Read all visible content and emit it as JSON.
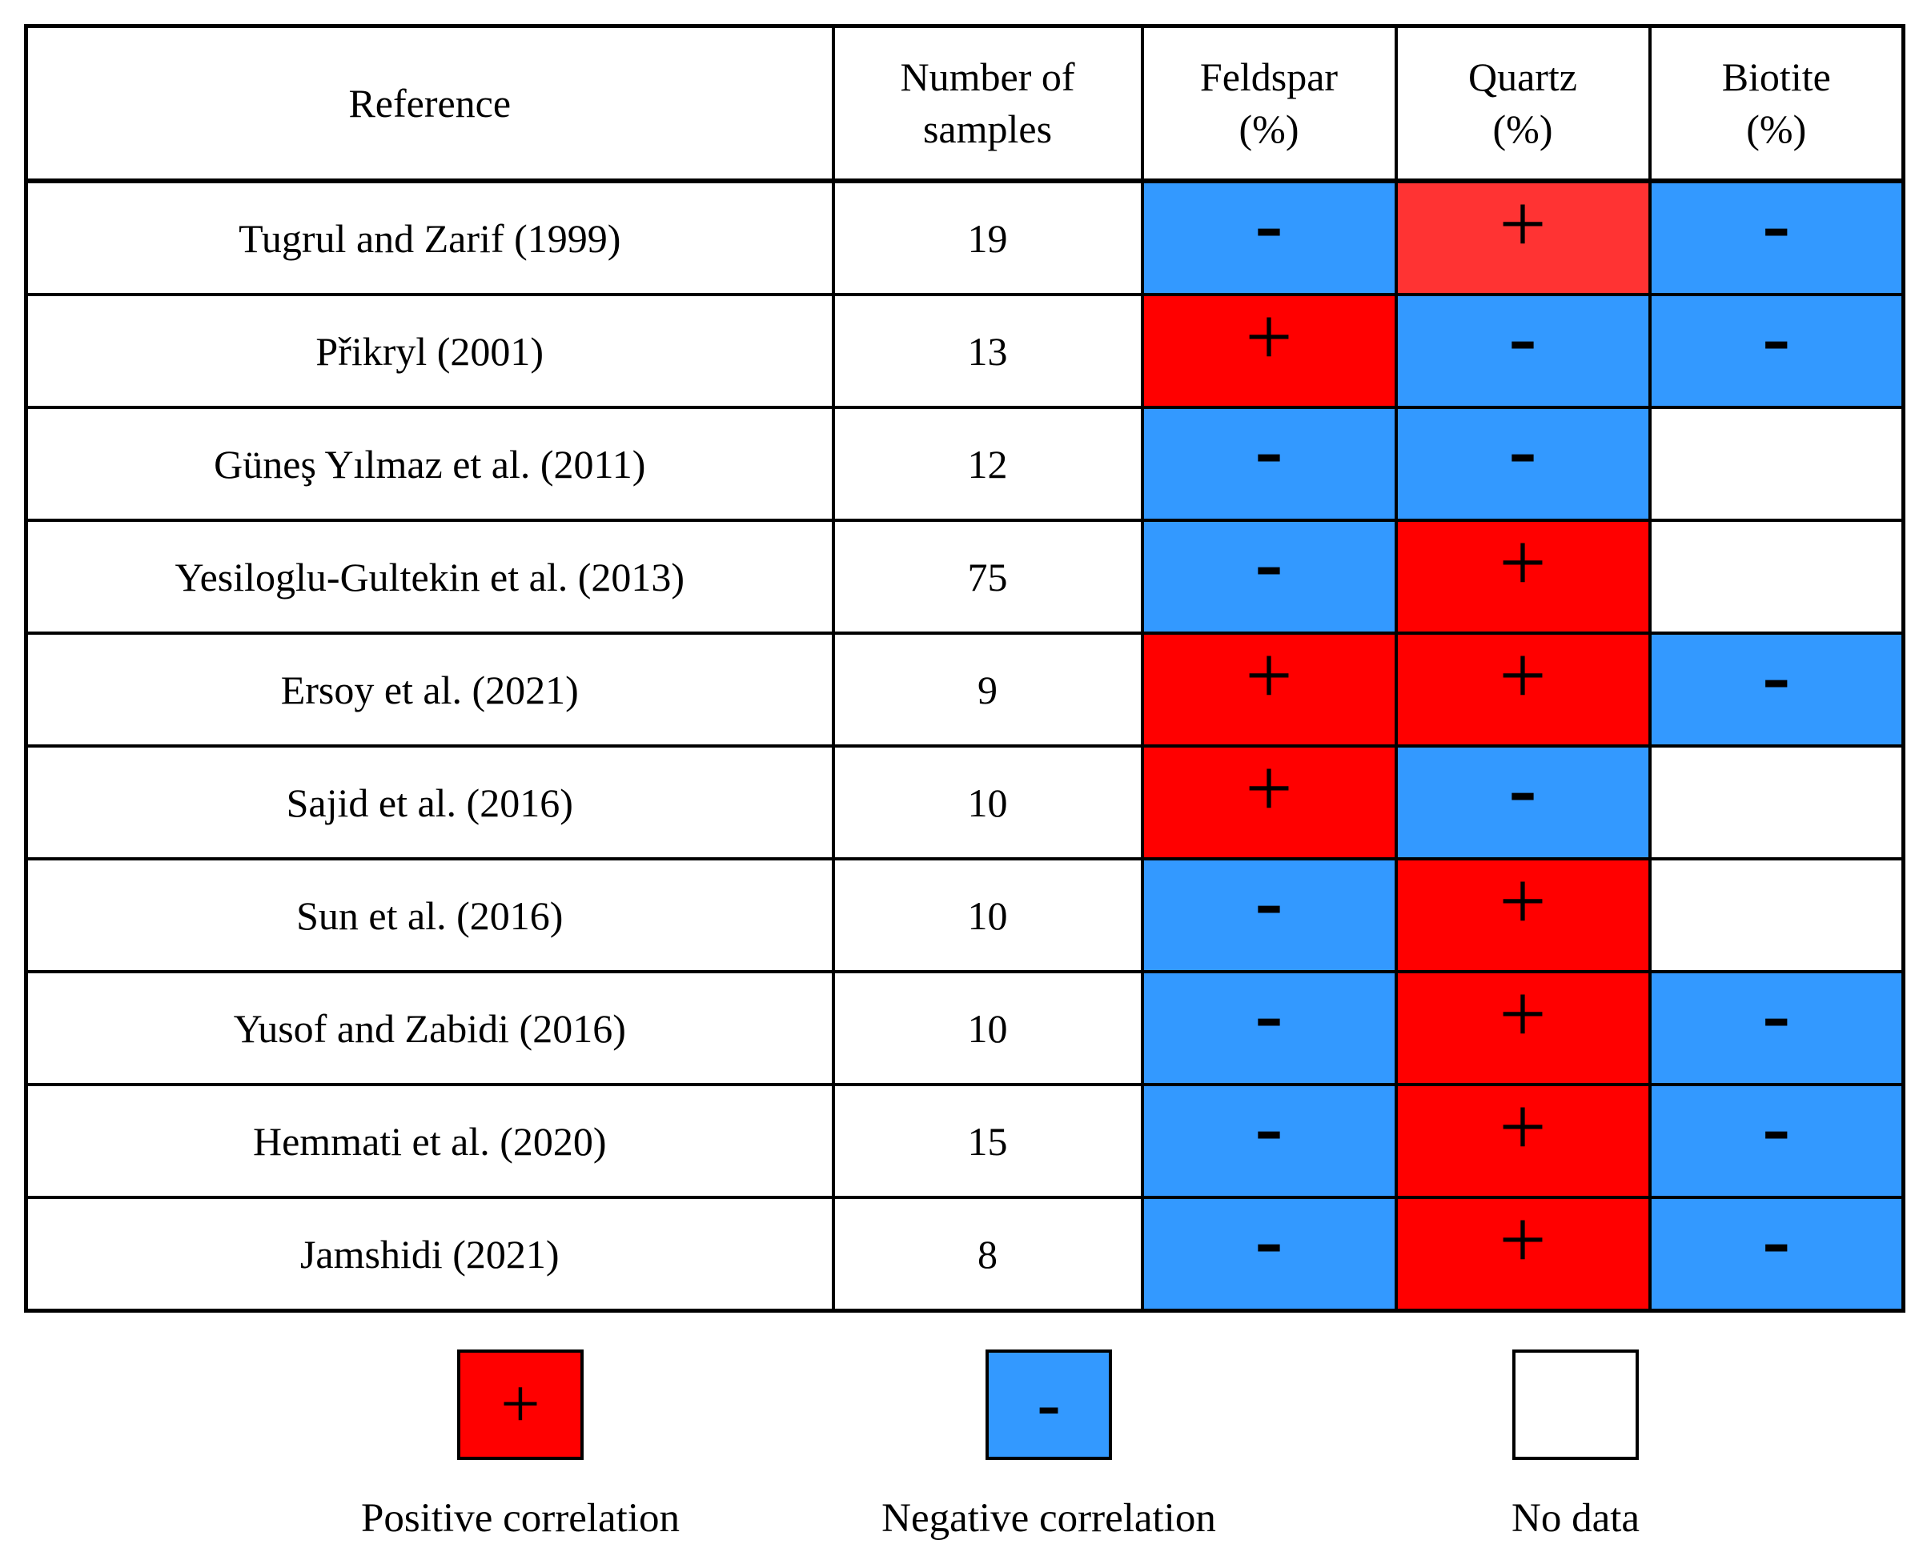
{
  "colors": {
    "positive": "#FF0000",
    "positive_light": "#FF3333",
    "negative": "#3399FF",
    "no_data": "#FFFFFF",
    "border": "#000000"
  },
  "table": {
    "columns": [
      {
        "line1": "Reference",
        "line2": ""
      },
      {
        "line1": "Number of",
        "line2": "samples"
      },
      {
        "line1": "Feldspar",
        "line2": "(%)"
      },
      {
        "line1": "Quartz",
        "line2": "(%)"
      },
      {
        "line1": "Biotite",
        "line2": "(%)"
      }
    ],
    "rows": [
      {
        "reference": "Tugrul and Zarif (1999)",
        "samples": "19",
        "cells": [
          {
            "sign": "-",
            "color": "#3399FF"
          },
          {
            "sign": "+",
            "color": "#FF3333"
          },
          {
            "sign": "-",
            "color": "#3399FF"
          }
        ]
      },
      {
        "reference": "Přikryl (2001)",
        "samples": "13",
        "cells": [
          {
            "sign": "+",
            "color": "#FF0000"
          },
          {
            "sign": "-",
            "color": "#3399FF"
          },
          {
            "sign": "-",
            "color": "#3399FF"
          }
        ]
      },
      {
        "reference": "Güneş Yılmaz et al. (2011)",
        "samples": "12",
        "cells": [
          {
            "sign": "-",
            "color": "#3399FF"
          },
          {
            "sign": "-",
            "color": "#3399FF"
          },
          {
            "sign": "",
            "color": "#FFFFFF"
          }
        ]
      },
      {
        "reference": "Yesiloglu-Gultekin et al. (2013)",
        "samples": "75",
        "cells": [
          {
            "sign": "-",
            "color": "#3399FF"
          },
          {
            "sign": "+",
            "color": "#FF0000"
          },
          {
            "sign": "",
            "color": "#FFFFFF"
          }
        ]
      },
      {
        "reference": "Ersoy et al. (2021)",
        "samples": "9",
        "cells": [
          {
            "sign": "+",
            "color": "#FF0000"
          },
          {
            "sign": "+",
            "color": "#FF0000"
          },
          {
            "sign": "-",
            "color": "#3399FF"
          }
        ]
      },
      {
        "reference": "Sajid et al. (2016)",
        "samples": "10",
        "cells": [
          {
            "sign": "+",
            "color": "#FF0000"
          },
          {
            "sign": "-",
            "color": "#3399FF"
          },
          {
            "sign": "",
            "color": "#FFFFFF"
          }
        ]
      },
      {
        "reference": "Sun et al. (2016)",
        "samples": "10",
        "cells": [
          {
            "sign": "-",
            "color": "#3399FF"
          },
          {
            "sign": "+",
            "color": "#FF0000"
          },
          {
            "sign": "",
            "color": "#FFFFFF"
          }
        ]
      },
      {
        "reference": "Yusof and Zabidi (2016)",
        "samples": "10",
        "cells": [
          {
            "sign": "-",
            "color": "#3399FF"
          },
          {
            "sign": "+",
            "color": "#FF0000"
          },
          {
            "sign": "-",
            "color": "#3399FF"
          }
        ]
      },
      {
        "reference": "Hemmati et al. (2020)",
        "samples": "15",
        "cells": [
          {
            "sign": "-",
            "color": "#3399FF"
          },
          {
            "sign": "+",
            "color": "#FF0000"
          },
          {
            "sign": "-",
            "color": "#3399FF"
          }
        ]
      },
      {
        "reference": "Jamshidi (2021)",
        "samples": "8",
        "cells": [
          {
            "sign": "-",
            "color": "#3399FF"
          },
          {
            "sign": "+",
            "color": "#FF0000"
          },
          {
            "sign": "-",
            "color": "#3399FF"
          }
        ]
      }
    ]
  },
  "legend": [
    {
      "sign": "+",
      "color": "#FF0000",
      "label": "Positive correlation"
    },
    {
      "sign": "-",
      "color": "#3399FF",
      "label": "Negative correlation"
    },
    {
      "sign": "",
      "color": "#FFFFFF",
      "label": "No data"
    }
  ],
  "chart_data": {
    "type": "table",
    "columns": [
      "Reference",
      "Number of samples",
      "Feldspar (%)",
      "Quartz (%)",
      "Biotite (%)"
    ],
    "rows": [
      [
        "Tugrul and Zarif (1999)",
        19,
        "negative",
        "positive",
        "negative"
      ],
      [
        "Přikryl (2001)",
        13,
        "positive",
        "negative",
        "negative"
      ],
      [
        "Güneş Yılmaz et al. (2011)",
        12,
        "negative",
        "negative",
        "no data"
      ],
      [
        "Yesiloglu-Gultekin et al. (2013)",
        75,
        "negative",
        "positive",
        "no data"
      ],
      [
        "Ersoy et al. (2021)",
        9,
        "positive",
        "positive",
        "negative"
      ],
      [
        "Sajid et al. (2016)",
        10,
        "positive",
        "negative",
        "no data"
      ],
      [
        "Sun et al. (2016)",
        10,
        "negative",
        "positive",
        "no data"
      ],
      [
        "Yusof and Zabidi (2016)",
        10,
        "negative",
        "positive",
        "negative"
      ],
      [
        "Hemmati et al. (2020)",
        15,
        "negative",
        "positive",
        "negative"
      ],
      [
        "Jamshidi (2021)",
        8,
        "negative",
        "positive",
        "negative"
      ]
    ],
    "legend": [
      "+ red = Positive correlation",
      "- blue = Negative correlation",
      "white = No data"
    ]
  }
}
